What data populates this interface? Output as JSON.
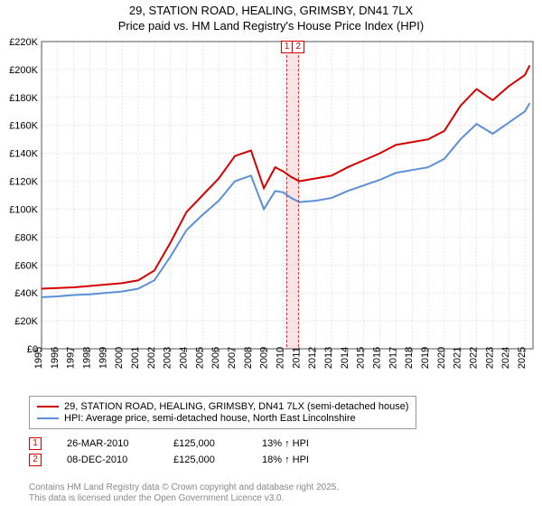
{
  "title_line1": "29, STATION ROAD, HEALING, GRIMSBY, DN41 7LX",
  "title_line2": "Price paid vs. HM Land Registry's House Price Index (HPI)",
  "chart": {
    "type": "line",
    "background_color": "#ffffff",
    "grid_color": "#cccccc",
    "axis_color": "#555555",
    "highlight_band_color": "#fde4e4",
    "highlight_band_xstart": 2010.15,
    "highlight_band_xend": 2011.05,
    "xlim": [
      1995,
      2025.5
    ],
    "ylim": [
      0,
      220000
    ],
    "xtick_step": 1,
    "ytick_step": 20000,
    "xticks": [
      "1995",
      "1996",
      "1997",
      "1998",
      "1999",
      "2000",
      "2001",
      "2002",
      "2003",
      "2004",
      "2005",
      "2006",
      "2007",
      "2008",
      "2009",
      "2010",
      "2011",
      "2012",
      "2013",
      "2014",
      "2015",
      "2016",
      "2017",
      "2018",
      "2019",
      "2020",
      "2021",
      "2022",
      "2023",
      "2024",
      "2025"
    ],
    "yticklabels": [
      "£0",
      "£20K",
      "£40K",
      "£60K",
      "£80K",
      "£100K",
      "£120K",
      "£140K",
      "£160K",
      "£180K",
      "£200K",
      "£220K"
    ],
    "x_label_fontsize": 11,
    "y_label_fontsize": 11,
    "series1": {
      "label": "29, STATION ROAD, HEALING, GRIMSBY, DN41 7LX (semi-detached house)",
      "color": "#d40000",
      "line_width": 2,
      "x": [
        1995,
        1996,
        1997,
        1998,
        1999,
        2000,
        2001,
        2002,
        2003,
        2004,
        2005,
        2006,
        2007,
        2008,
        2008.8,
        2009.5,
        2010,
        2010.5,
        2011,
        2012,
        2013,
        2014,
        2015,
        2016,
        2017,
        2018,
        2019,
        2020,
        2021,
        2022,
        2023,
        2024,
        2025,
        2025.3
      ],
      "y": [
        43000,
        43500,
        44000,
        45000,
        46000,
        47000,
        49000,
        56000,
        76000,
        98000,
        110000,
        122000,
        138000,
        142000,
        115000,
        130000,
        127000,
        123000,
        120000,
        122000,
        124000,
        130000,
        135000,
        140000,
        146000,
        148000,
        150000,
        156000,
        174000,
        186000,
        178000,
        188000,
        196000,
        203000
      ]
    },
    "series2": {
      "label": "HPI: Average price, semi-detached house, North East Lincolnshire",
      "color": "#5b8fd6",
      "line_width": 2,
      "x": [
        1995,
        1996,
        1997,
        1998,
        1999,
        2000,
        2001,
        2002,
        2003,
        2004,
        2005,
        2006,
        2007,
        2008,
        2008.8,
        2009.5,
        2010,
        2010.5,
        2011,
        2012,
        2013,
        2014,
        2015,
        2016,
        2017,
        2018,
        2019,
        2020,
        2021,
        2022,
        2023,
        2024,
        2025,
        2025.3
      ],
      "y": [
        37000,
        37500,
        38500,
        39000,
        40000,
        41000,
        43000,
        49000,
        66000,
        85000,
        96000,
        106000,
        120000,
        124000,
        100000,
        113000,
        112000,
        108000,
        105000,
        106000,
        108000,
        113000,
        117000,
        121000,
        126000,
        128000,
        130000,
        136000,
        150000,
        161000,
        154000,
        162000,
        170000,
        176000
      ]
    },
    "markers": [
      {
        "n": "1",
        "x": 2010.23,
        "color": "#d40000"
      },
      {
        "n": "2",
        "x": 2010.94,
        "color": "#d40000"
      }
    ]
  },
  "legend": {
    "border_color": "#999999",
    "fontsize": 11
  },
  "sales": [
    {
      "n": "1",
      "date": "26-MAR-2010",
      "price": "£125,000",
      "diff": "13% ↑ HPI",
      "color": "#d40000"
    },
    {
      "n": "2",
      "date": "08-DEC-2010",
      "price": "£125,000",
      "diff": "18% ↑ HPI",
      "color": "#d40000"
    }
  ],
  "footer_line1": "Contains HM Land Registry data © Crown copyright and database right 2025.",
  "footer_line2": "This data is licensed under the Open Government Licence v3.0."
}
